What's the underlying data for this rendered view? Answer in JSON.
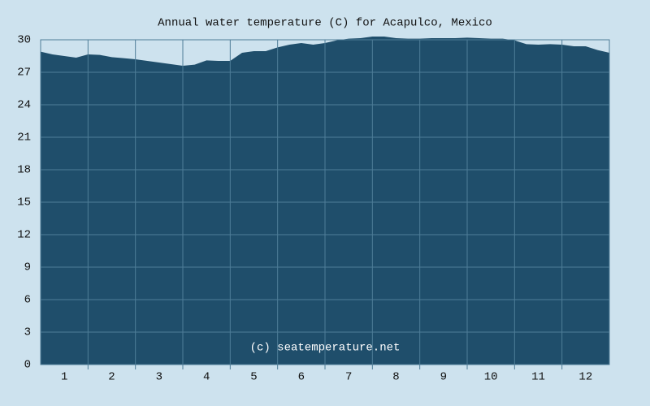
{
  "chart_data": {
    "type": "area",
    "title": "Annual water temperature (C) for Acapulco, Mexico",
    "watermark": "(c) seatemperature.net",
    "color": "#1f4e6b",
    "x": [
      0,
      0.25,
      0.5,
      0.75,
      1,
      1.25,
      1.5,
      1.75,
      2,
      2.25,
      2.5,
      2.75,
      3,
      3.25,
      3.5,
      3.75,
      4,
      4.25,
      4.5,
      4.75,
      5,
      5.25,
      5.5,
      5.75,
      6,
      6.25,
      6.5,
      6.75,
      7,
      7.25,
      7.5,
      7.75,
      8,
      8.25,
      8.5,
      8.75,
      9,
      9.25,
      9.5,
      9.75,
      10,
      10.25,
      10.5,
      10.75,
      11,
      11.25,
      11.5,
      11.75,
      12
    ],
    "values": [
      28.9,
      28.65,
      28.5,
      28.35,
      28.65,
      28.6,
      28.4,
      28.3,
      28.2,
      28.05,
      27.9,
      27.75,
      27.6,
      27.7,
      28.1,
      28.05,
      28.05,
      28.8,
      28.95,
      28.95,
      29.3,
      29.55,
      29.7,
      29.55,
      29.7,
      29.95,
      30.1,
      30.15,
      30.3,
      30.3,
      30.15,
      30.1,
      30.1,
      30.15,
      30.15,
      30.15,
      30.2,
      30.15,
      30.1,
      30.1,
      29.95,
      29.6,
      29.55,
      29.6,
      29.55,
      29.4,
      29.4,
      29.05,
      28.8
    ],
    "xlim": [
      0,
      12
    ],
    "xticks": [
      {
        "value": 0.5,
        "label": "1"
      },
      {
        "value": 1.5,
        "label": "2"
      },
      {
        "value": 2.5,
        "label": "3"
      },
      {
        "value": 3.5,
        "label": "4"
      },
      {
        "value": 4.5,
        "label": "5"
      },
      {
        "value": 5.5,
        "label": "6"
      },
      {
        "value": 6.5,
        "label": "7"
      },
      {
        "value": 7.5,
        "label": "8"
      },
      {
        "value": 8.5,
        "label": "9"
      },
      {
        "value": 9.5,
        "label": "10"
      },
      {
        "value": 10.5,
        "label": "11"
      },
      {
        "value": 11.5,
        "label": "12"
      }
    ],
    "ylim": [
      0,
      30
    ],
    "yticks": [
      0,
      3,
      6,
      9,
      12,
      15,
      18,
      21,
      24,
      27,
      30
    ],
    "grid": true
  }
}
